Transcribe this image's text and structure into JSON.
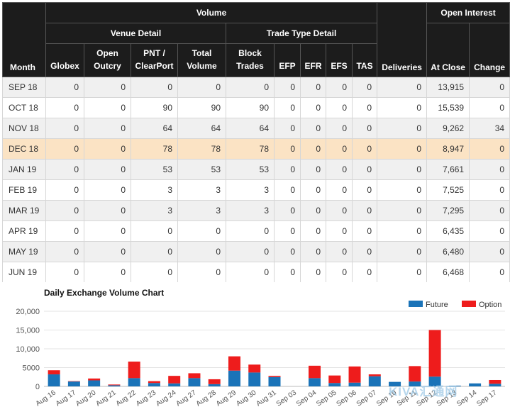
{
  "table": {
    "header_volume": "Volume",
    "header_open_interest": "Open Interest",
    "header_venue_detail": "Venue Detail",
    "header_trade_type_detail": "Trade Type Detail",
    "col_month": "Month",
    "col_globex": "Globex",
    "col_open_outcry": "Open Outcry",
    "col_pnt": "PNT / ClearPort",
    "col_total_volume": "Total Volume",
    "col_block_trades": "Block Trades",
    "col_efp": "EFP",
    "col_efr": "EFR",
    "col_efs": "EFS",
    "col_tas": "TAS",
    "col_deliveries": "Deliveries",
    "col_at_close": "At Close",
    "col_change": "Change",
    "highlight_color": "#fbe3c4",
    "rows": [
      {
        "month": "SEP 18",
        "globex": "0",
        "open_outcry": "0",
        "pnt": "0",
        "total": "0",
        "block": "0",
        "efp": "0",
        "efr": "0",
        "efs": "0",
        "tas": "0",
        "deliveries": "0",
        "at_close": "13,915",
        "change": "0",
        "highlight": false
      },
      {
        "month": "OCT 18",
        "globex": "0",
        "open_outcry": "0",
        "pnt": "90",
        "total": "90",
        "block": "90",
        "efp": "0",
        "efr": "0",
        "efs": "0",
        "tas": "0",
        "deliveries": "0",
        "at_close": "15,539",
        "change": "0",
        "highlight": false
      },
      {
        "month": "NOV 18",
        "globex": "0",
        "open_outcry": "0",
        "pnt": "64",
        "total": "64",
        "block": "64",
        "efp": "0",
        "efr": "0",
        "efs": "0",
        "tas": "0",
        "deliveries": "0",
        "at_close": "9,262",
        "change": "34",
        "highlight": false
      },
      {
        "month": "DEC 18",
        "globex": "0",
        "open_outcry": "0",
        "pnt": "78",
        "total": "78",
        "block": "78",
        "efp": "0",
        "efr": "0",
        "efs": "0",
        "tas": "0",
        "deliveries": "0",
        "at_close": "8,947",
        "change": "0",
        "highlight": true
      },
      {
        "month": "JAN 19",
        "globex": "0",
        "open_outcry": "0",
        "pnt": "53",
        "total": "53",
        "block": "53",
        "efp": "0",
        "efr": "0",
        "efs": "0",
        "tas": "0",
        "deliveries": "0",
        "at_close": "7,661",
        "change": "0",
        "highlight": false
      },
      {
        "month": "FEB 19",
        "globex": "0",
        "open_outcry": "0",
        "pnt": "3",
        "total": "3",
        "block": "3",
        "efp": "0",
        "efr": "0",
        "efs": "0",
        "tas": "0",
        "deliveries": "0",
        "at_close": "7,525",
        "change": "0",
        "highlight": false
      },
      {
        "month": "MAR 19",
        "globex": "0",
        "open_outcry": "0",
        "pnt": "3",
        "total": "3",
        "block": "3",
        "efp": "0",
        "efr": "0",
        "efs": "0",
        "tas": "0",
        "deliveries": "0",
        "at_close": "7,295",
        "change": "0",
        "highlight": false
      },
      {
        "month": "APR 19",
        "globex": "0",
        "open_outcry": "0",
        "pnt": "0",
        "total": "0",
        "block": "0",
        "efp": "0",
        "efr": "0",
        "efs": "0",
        "tas": "0",
        "deliveries": "0",
        "at_close": "6,435",
        "change": "0",
        "highlight": false
      },
      {
        "month": "MAY 19",
        "globex": "0",
        "open_outcry": "0",
        "pnt": "0",
        "total": "0",
        "block": "0",
        "efp": "0",
        "efr": "0",
        "efs": "0",
        "tas": "0",
        "deliveries": "0",
        "at_close": "6,480",
        "change": "0",
        "highlight": false
      },
      {
        "month": "JUN 19",
        "globex": "0",
        "open_outcry": "0",
        "pnt": "0",
        "total": "0",
        "block": "0",
        "efp": "0",
        "efr": "0",
        "efs": "0",
        "tas": "0",
        "deliveries": "0",
        "at_close": "6,468",
        "change": "0",
        "highlight": false
      }
    ]
  },
  "chart_data": {
    "type": "bar",
    "stacked": true,
    "title": "Daily Exchange Volume Chart",
    "xlabel": "",
    "ylabel": "",
    "ylim": [
      0,
      20000
    ],
    "yticks": [
      "0",
      "5000",
      "10,000",
      "15,000",
      "20,000"
    ],
    "ytick_values": [
      0,
      5000,
      10000,
      15000,
      20000
    ],
    "grid": true,
    "legend_position": "top-right",
    "categories": [
      "Aug 16",
      "Aug 17",
      "Aug 20",
      "Aug 21",
      "Aug 22",
      "Aug 23",
      "Aug 24",
      "Aug 27",
      "Aug 28",
      "Aug 29",
      "Aug 30",
      "Aug 31",
      "Sep 03",
      "Sep 04",
      "Sep 05",
      "Sep 06",
      "Sep 07",
      "Sep 10",
      "Sep 11",
      "Sep 12",
      "Sep 13",
      "Sep 14",
      "Sep 17"
    ],
    "series": [
      {
        "name": "Future",
        "color": "#1a73b8",
        "values": [
          3200,
          1300,
          1600,
          300,
          2200,
          900,
          800,
          2200,
          600,
          4200,
          3700,
          2500,
          0,
          2200,
          900,
          1000,
          2700,
          1200,
          1300,
          2600,
          200,
          800,
          700
        ]
      },
      {
        "name": "Option",
        "color": "#ee1c1c",
        "values": [
          1100,
          100,
          500,
          200,
          4400,
          500,
          2000,
          1300,
          1300,
          3800,
          2100,
          300,
          0,
          3300,
          2000,
          4300,
          500,
          0,
          4100,
          12400,
          0,
          0,
          1000
        ]
      }
    ]
  },
  "watermark": "KIVA汇通网"
}
